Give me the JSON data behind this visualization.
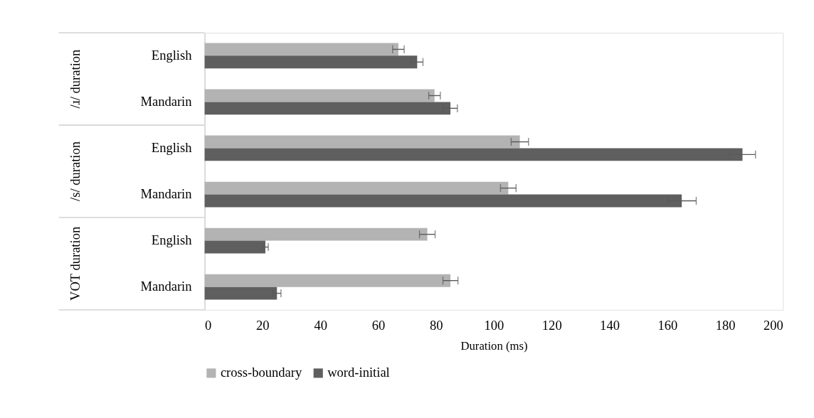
{
  "chart_data": {
    "type": "bar",
    "orientation": "horizontal",
    "categories": [
      "English",
      "Mandarin",
      "English",
      "Mandarin",
      "English",
      "Mandarin"
    ],
    "series": [
      {
        "name": "cross-boundary",
        "color": "#b3b3b3",
        "values": [
          67,
          79.5,
          109,
          105,
          77,
          85
        ],
        "errors": [
          2,
          2,
          3,
          2.7,
          2.7,
          2.6
        ]
      },
      {
        "name": "word-initial",
        "color": "#5f5f5f",
        "values": [
          73.5,
          85,
          186,
          165,
          21,
          25
        ],
        "errors": [
          2,
          2.4,
          4.5,
          5,
          1,
          1.4
        ]
      }
    ],
    "xlabel": "Duration (ms)",
    "xlim": [
      0,
      200
    ],
    "xticks": [
      0,
      20,
      40,
      60,
      80,
      100,
      120,
      140,
      160,
      180,
      200
    ],
    "annotations": [
      "/ɹ/ duration",
      "/s/ duration",
      "VOT duration"
    ],
    "grid": false,
    "legend": "bottom"
  }
}
